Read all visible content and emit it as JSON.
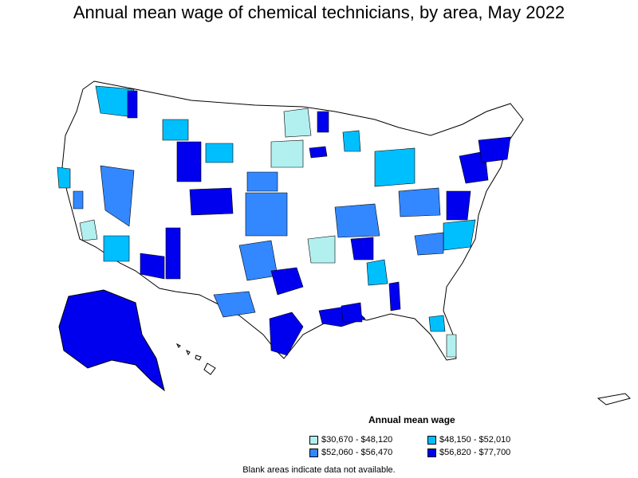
{
  "title": "Annual mean wage of chemical technicians, by area, May 2022",
  "legend": {
    "title": "Annual mean wage",
    "items": [
      {
        "label": "$30,670 - $48,120",
        "color": "#b2f0f0"
      },
      {
        "label": "$48,150 - $52,010",
        "color": "#00bfff"
      },
      {
        "label": "$52,060 - $56,470",
        "color": "#3388ff"
      },
      {
        "label": "$56,820 - $77,700",
        "color": "#0000ee"
      }
    ]
  },
  "note": "Blank areas indicate data not available.",
  "colors": {
    "outline": "#000000",
    "blank": "#ffffff"
  }
}
